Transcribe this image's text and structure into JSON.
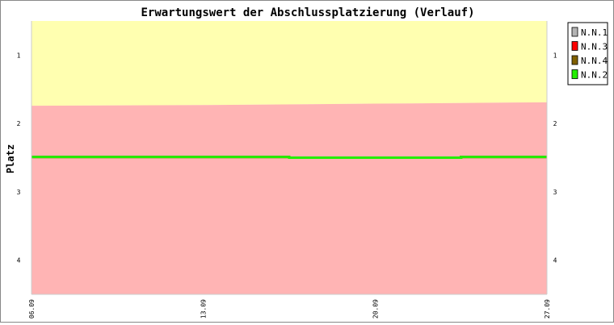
{
  "chart_data": {
    "type": "line",
    "title": "Erwartungswert der Abschlussplatzierung (Verlauf)",
    "xlabel": "",
    "ylabel": "Platz",
    "x_ticks": [
      "06.09",
      "13.09",
      "20.09",
      "27.09"
    ],
    "y_ticks": [
      1,
      2,
      3,
      4
    ],
    "ylim": [
      4.5,
      0.5
    ],
    "y_inverted": true,
    "grid": false,
    "legend_position": "outside-top-right",
    "x": [
      "06.09",
      "13.09",
      "20.09",
      "27.09"
    ],
    "bands": [
      {
        "color": "#ffffb0",
        "from": 0.5,
        "to_values": [
          1.74,
          1.73,
          1.71,
          1.69
        ]
      },
      {
        "color": "#ffb4b4",
        "from_values": [
          1.74,
          1.73,
          1.71,
          1.69
        ],
        "to": 4.5
      }
    ],
    "series": [
      {
        "name": "N.N.1",
        "color": "#b4b4b4",
        "values": [
          2.49,
          2.49,
          2.5,
          2.49
        ]
      },
      {
        "name": "N.N.3",
        "color": "#ff0000",
        "values": [
          2.49,
          2.49,
          2.5,
          2.49
        ]
      },
      {
        "name": "N.N.4",
        "color": "#806000",
        "values": [
          2.49,
          2.49,
          2.5,
          2.49
        ]
      },
      {
        "name": "N.N.2",
        "color": "#22ee00",
        "values": [
          2.49,
          2.49,
          2.5,
          2.49
        ]
      }
    ]
  }
}
